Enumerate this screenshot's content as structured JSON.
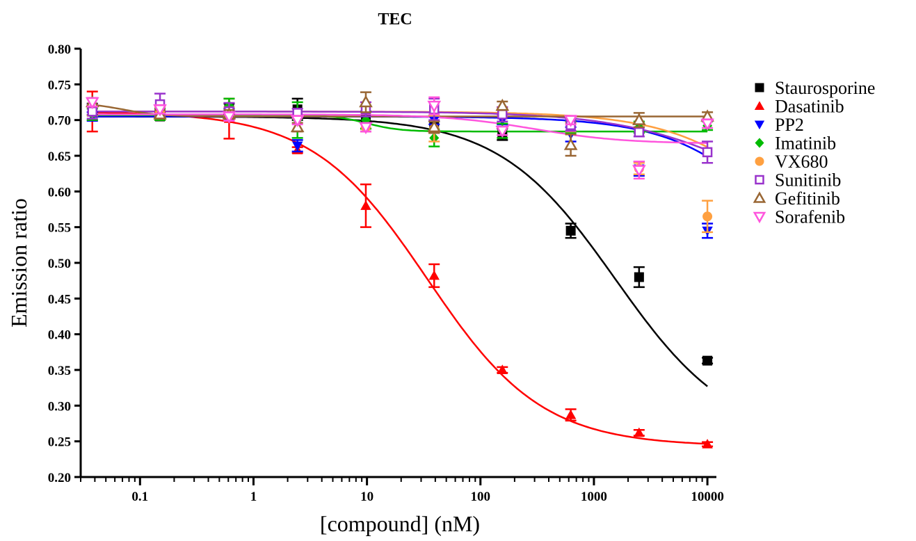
{
  "chart_data": {
    "type": "scatter",
    "title": "TEC",
    "xlabel": "[compound] (nM)",
    "ylabel": "Emission ratio",
    "xscale": "log",
    "xlim": [
      0.03,
      12000
    ],
    "ylim": [
      0.2,
      0.8
    ],
    "xticks": [
      {
        "value": 0.1,
        "label": "0.1"
      },
      {
        "value": 1,
        "label": "1"
      },
      {
        "value": 10,
        "label": "10"
      },
      {
        "value": 100,
        "label": "100"
      },
      {
        "value": 1000,
        "label": "1000"
      },
      {
        "value": 10000,
        "label": "10000"
      }
    ],
    "yticks": [
      {
        "value": 0.2,
        "label": "0.20"
      },
      {
        "value": 0.25,
        "label": "0.25"
      },
      {
        "value": 0.3,
        "label": "0.30"
      },
      {
        "value": 0.35,
        "label": "0.35"
      },
      {
        "value": 0.4,
        "label": "0.40"
      },
      {
        "value": 0.45,
        "label": "0.45"
      },
      {
        "value": 0.5,
        "label": "0.50"
      },
      {
        "value": 0.55,
        "label": "0.55"
      },
      {
        "value": 0.6,
        "label": "0.60"
      },
      {
        "value": 0.65,
        "label": "0.65"
      },
      {
        "value": 0.7,
        "label": "0.70"
      },
      {
        "value": 0.75,
        "label": "0.75"
      },
      {
        "value": 0.8,
        "label": "0.80"
      }
    ],
    "legend_position": "right",
    "grid": false,
    "x": [
      0.038,
      0.15,
      0.61,
      2.44,
      9.77,
      39.1,
      156,
      625,
      2500,
      10000
    ],
    "series": [
      {
        "name": "Staurosporine",
        "color": "#000000",
        "marker": "square-filled",
        "values": [
          0.715,
          0.705,
          0.715,
          0.715,
          0.7,
          0.69,
          0.68,
          0.545,
          0.48,
          0.363
        ],
        "errors": [
          0.008,
          0.005,
          0.008,
          0.015,
          0.012,
          0.008,
          0.008,
          0.01,
          0.014,
          0.004
        ],
        "fit": {
          "top": 0.705,
          "bottom": 0.25,
          "ec50": 1540,
          "hill": 0.85
        }
      },
      {
        "name": "Dasatinib",
        "color": "#ff0000",
        "marker": "triangle-up-filled",
        "values": [
          0.712,
          0.705,
          0.702,
          0.658,
          0.58,
          0.482,
          0.35,
          0.287,
          0.262,
          0.246
        ],
        "errors": [
          0.028,
          0.005,
          0.028,
          0.004,
          0.03,
          0.016,
          0.004,
          0.008,
          0.004,
          0.003
        ],
        "fit": {
          "top": 0.712,
          "bottom": 0.243,
          "ec50": 34,
          "hill": 0.86
        }
      },
      {
        "name": "PP2",
        "color": "#0000ff",
        "marker": "triangle-down-filled",
        "values": [
          0.705,
          0.71,
          0.71,
          0.664,
          0.69,
          0.7,
          0.7,
          0.68,
          0.632,
          0.545
        ],
        "errors": [
          0.006,
          0.006,
          0.006,
          0.008,
          0.006,
          0.006,
          0.006,
          0.01,
          0.01,
          0.01
        ],
        "fit": {
          "top": 0.705,
          "bottom": 0.25,
          "ec50": 100000,
          "hill": 0.85
        }
      },
      {
        "name": "Imatinib",
        "color": "#00bb00",
        "marker": "diamond-filled",
        "values": [
          0.708,
          0.708,
          0.72,
          0.7,
          0.7,
          0.675,
          0.685,
          0.69,
          0.69,
          0.692
        ],
        "errors": [
          0.008,
          0.008,
          0.01,
          0.025,
          0.012,
          0.012,
          0.01,
          0.008,
          0.008,
          0.006
        ],
        "fit": {
          "top": 0.707,
          "bottom": 0.684,
          "ec50": 10,
          "hill": 3
        }
      },
      {
        "name": "VX680",
        "color": "#ffa040",
        "marker": "circle-filled",
        "values": [
          0.712,
          0.712,
          0.712,
          0.71,
          0.69,
          0.688,
          0.712,
          0.69,
          0.632,
          0.565
        ],
        "errors": [
          0.006,
          0.006,
          0.006,
          0.006,
          0.006,
          0.018,
          0.006,
          0.006,
          0.008,
          0.022
        ],
        "fit": {
          "top": 0.712,
          "bottom": 0.25,
          "ec50": 140000,
          "hill": 0.8
        }
      },
      {
        "name": "Sunitinib",
        "color": "#9933cc",
        "marker": "square-open",
        "values": [
          0.712,
          0.722,
          0.712,
          0.71,
          0.715,
          0.715,
          0.708,
          0.693,
          0.683,
          0.655
        ],
        "errors": [
          0.01,
          0.015,
          0.012,
          0.006,
          0.01,
          0.015,
          0.01,
          0.008,
          0.006,
          0.015
        ],
        "fit": {
          "top": 0.712,
          "bottom": 0.55,
          "ec50": 25000,
          "hill": 0.75
        }
      },
      {
        "name": "Gefitinib",
        "color": "#996633",
        "marker": "triangle-up-open",
        "values": [
          0.725,
          0.708,
          0.708,
          0.69,
          0.725,
          0.69,
          0.72,
          0.665,
          0.7,
          0.705
        ],
        "errors": [
          0.006,
          0.006,
          0.006,
          0.006,
          0.014,
          0.008,
          0.006,
          0.015,
          0.01,
          0.006
        ],
        "fit": {
          "top": 0.725,
          "bottom": 0.705,
          "ec50": 0.07,
          "hill": 2.5
        }
      },
      {
        "name": "Sorafenib",
        "color": "#ff55dd",
        "marker": "triangle-down-open",
        "values": [
          0.725,
          0.715,
          0.705,
          0.7,
          0.69,
          0.72,
          0.685,
          0.7,
          0.63,
          0.695
        ],
        "errors": [
          0.006,
          0.006,
          0.006,
          0.006,
          0.006,
          0.012,
          0.006,
          0.006,
          0.012,
          0.006
        ],
        "fit": {
          "top": 0.708,
          "bottom": 0.667,
          "ec50": 300,
          "hill": 1.1
        }
      }
    ]
  }
}
